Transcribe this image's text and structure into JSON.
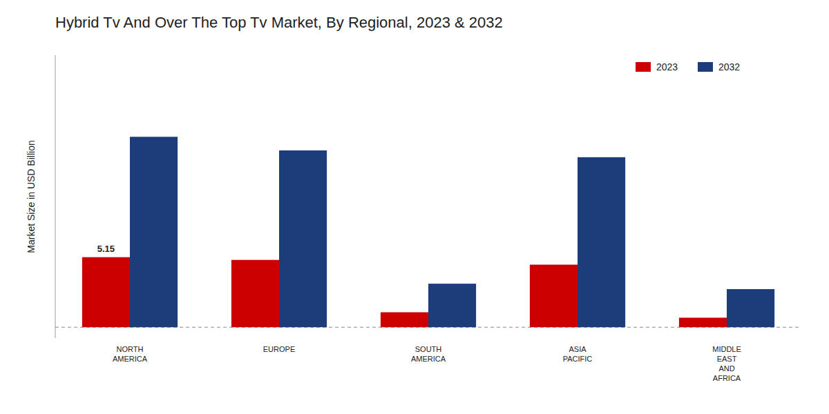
{
  "chart_data": {
    "type": "bar",
    "title": "Hybrid Tv And Over The Top Tv Market, By Regional, 2023 & 2032",
    "y_label": "Market Size in USD Billion",
    "categories": [
      "NORTH\nAMERICA",
      "EUROPE",
      "SOUTH\nAMERICA",
      "ASIA\nPACIFIC",
      "MIDDLE\nEAST\nAND\nAFRICA"
    ],
    "series": [
      {
        "name": "2023",
        "color": "#cc0000",
        "values": [
          5.15,
          4.95,
          1.1,
          4.6,
          0.7
        ]
      },
      {
        "name": "2032",
        "color": "#1c3d7a",
        "values": [
          14.0,
          13.0,
          3.2,
          12.5,
          2.8
        ]
      }
    ],
    "annotation": "5.15",
    "reference_lines": [
      {
        "value": 0,
        "line_style": "dashed"
      }
    ],
    "ylim": [
      -0.8,
      20.0
    ],
    "grid": false,
    "legend": "upper right",
    "tick_labels": "x"
  }
}
